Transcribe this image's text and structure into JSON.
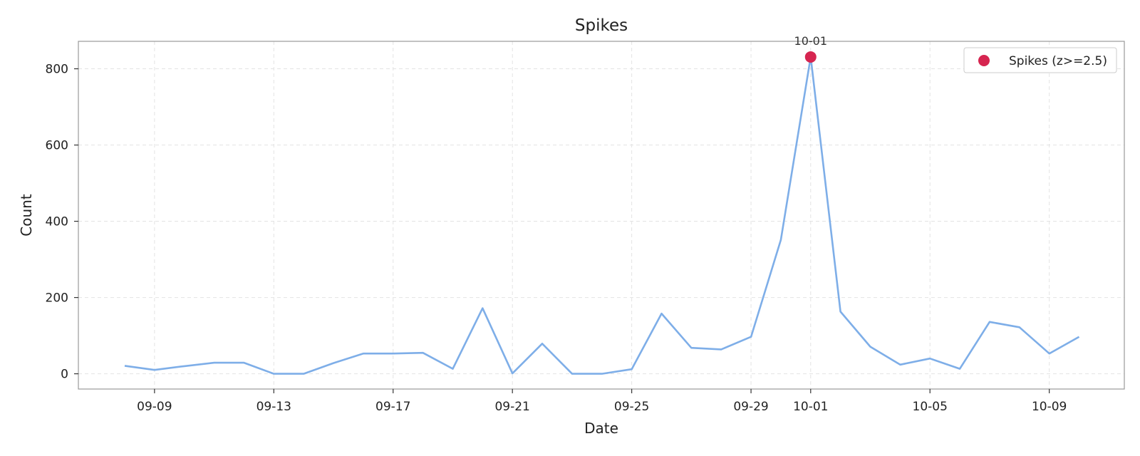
{
  "chart_data": {
    "type": "line",
    "title": "Spikes",
    "xlabel": "Date",
    "ylabel": "Count",
    "x": [
      "09-08",
      "09-09",
      "09-10",
      "09-11",
      "09-12",
      "09-13",
      "09-14",
      "09-15",
      "09-16",
      "09-17",
      "09-18",
      "09-19",
      "09-20",
      "09-21",
      "09-22",
      "09-23",
      "09-24",
      "09-25",
      "09-26",
      "09-27",
      "09-28",
      "09-29",
      "09-30",
      "10-01",
      "10-02",
      "10-03",
      "10-04",
      "10-05",
      "10-06",
      "10-07",
      "10-08",
      "10-09",
      "10-10"
    ],
    "x_ticks": [
      "09-09",
      "09-13",
      "09-17",
      "09-21",
      "09-25",
      "09-29",
      "10-01",
      "10-05",
      "10-09"
    ],
    "y_ticks": [
      0,
      200,
      400,
      600,
      800
    ],
    "ylim": [
      -40,
      872
    ],
    "grid": true,
    "series": [
      {
        "values": [
          21,
          10,
          20,
          29,
          29,
          0,
          0,
          28,
          53,
          53,
          55,
          13,
          172,
          1,
          79,
          0,
          0,
          12,
          158,
          68,
          64,
          97,
          351,
          831,
          163,
          71,
          24,
          40,
          13,
          136,
          122,
          53,
          97
        ],
        "color": "#7eaee8"
      }
    ],
    "spikes": {
      "name": "Spikes (z>=2.5)",
      "color": "#d62550",
      "points": [
        {
          "x": "10-01",
          "y": 831,
          "label": "10-01"
        }
      ]
    },
    "legend_position": "top-right"
  }
}
